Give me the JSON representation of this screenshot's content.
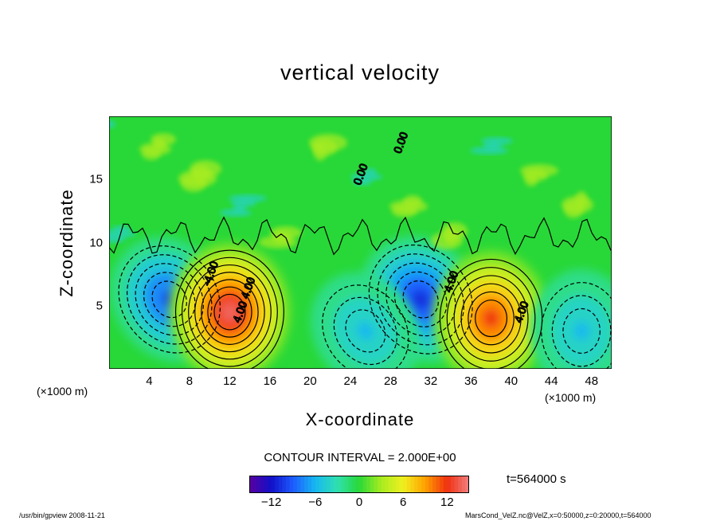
{
  "chart_data": {
    "type": "heatmap",
    "title": "vertical velocity",
    "xlabel": "X-coordinate",
    "ylabel": "Z-coordinate",
    "x_unit": "(×1000 m)",
    "y_unit": "(×1000 m)",
    "xlim": [
      0,
      50
    ],
    "ylim": [
      0,
      20
    ],
    "x_ticks": [
      4,
      8,
      12,
      16,
      20,
      24,
      28,
      32,
      36,
      40,
      44,
      48
    ],
    "y_ticks": [
      5,
      10,
      15
    ],
    "colorbar": {
      "min": -15,
      "max": 15,
      "ticks": [
        -12,
        -6,
        0,
        6,
        12
      ]
    },
    "contour_interval": "CONTOUR INTERVAL = 2.000E+00",
    "contour_labels": [
      "4.00",
      "-4.00",
      "0.00"
    ],
    "time": "t=564000 s",
    "features": [
      {
        "x": 6,
        "z": 5.5,
        "value": -10
      },
      {
        "x": 12,
        "z": 4.5,
        "value": 14
      },
      {
        "x": 31,
        "z": 5.5,
        "value": -11
      },
      {
        "x": 38,
        "z": 4,
        "value": 12
      },
      {
        "x": 25.5,
        "z": 3,
        "value": -6
      },
      {
        "x": 47,
        "z": 3,
        "value": -6
      }
    ]
  },
  "footer": {
    "left": "/usr/bin/gpview   2008-11-21",
    "right": "MarsCond_VelZ.nc@VelZ,x=0:50000,z=0:20000,t=564000"
  }
}
